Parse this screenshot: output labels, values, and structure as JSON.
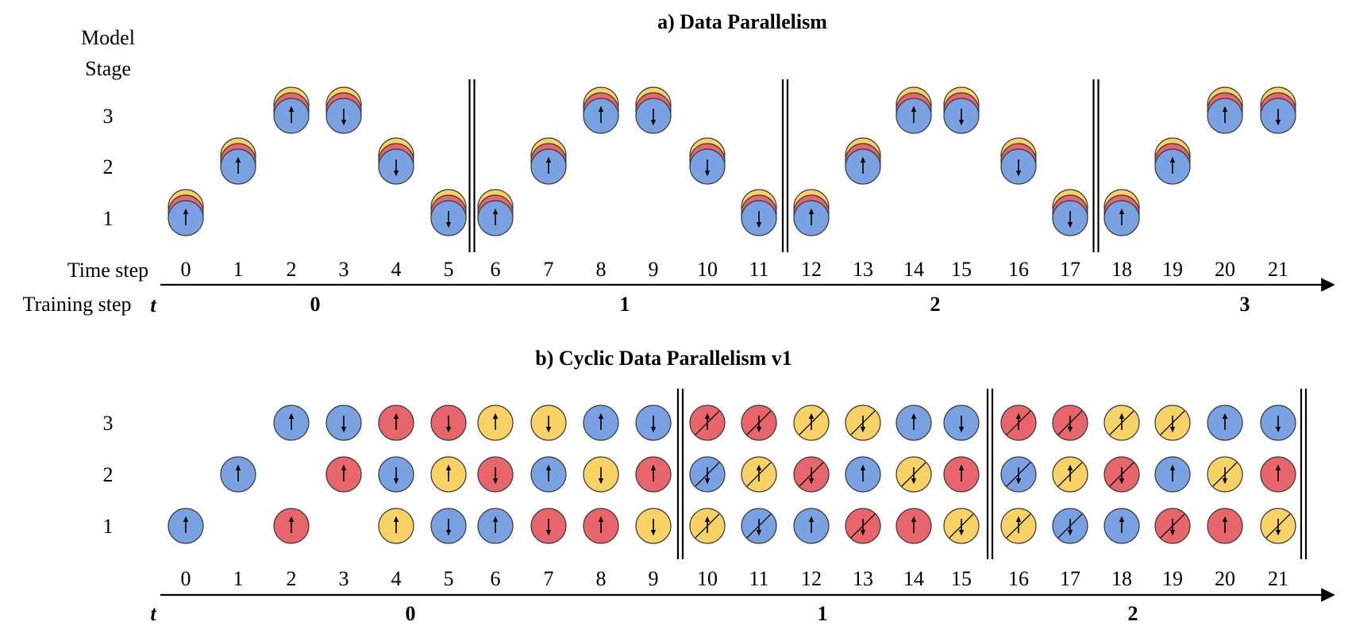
{
  "colors": {
    "blue": "#7aa2e3",
    "red": "#e8666b",
    "yellow": "#f8d264",
    "stroke": "#3a3a3a",
    "axis": "#000000"
  },
  "panel_a": {
    "title": "a) Data Parallelism",
    "y_axis_label_line1": "Model",
    "y_axis_label_line2": "Stage",
    "stage_labels": [
      "1",
      "2",
      "3"
    ],
    "time_axis_label": "Time step",
    "training_axis_label": "Training step",
    "training_axis_symbol": "t",
    "time_ticks": [
      "0",
      "1",
      "2",
      "3",
      "4",
      "5",
      "6",
      "7",
      "8",
      "9",
      "10",
      "11",
      "12",
      "13",
      "14",
      "15",
      "16",
      "17",
      "18",
      "19",
      "20",
      "21"
    ],
    "training_ticks": [
      "0",
      "1",
      "2",
      "3"
    ],
    "stacks": [
      {
        "time": 0,
        "stage": 1,
        "dir": "up"
      },
      {
        "time": 1,
        "stage": 2,
        "dir": "up"
      },
      {
        "time": 2,
        "stage": 3,
        "dir": "up"
      },
      {
        "time": 3,
        "stage": 3,
        "dir": "down"
      },
      {
        "time": 4,
        "stage": 2,
        "dir": "down"
      },
      {
        "time": 5,
        "stage": 1,
        "dir": "down"
      },
      {
        "time": 6,
        "stage": 1,
        "dir": "up"
      },
      {
        "time": 7,
        "stage": 2,
        "dir": "up"
      },
      {
        "time": 8,
        "stage": 3,
        "dir": "up"
      },
      {
        "time": 9,
        "stage": 3,
        "dir": "down"
      },
      {
        "time": 10,
        "stage": 2,
        "dir": "down"
      },
      {
        "time": 11,
        "stage": 1,
        "dir": "down"
      },
      {
        "time": 12,
        "stage": 1,
        "dir": "up"
      },
      {
        "time": 13,
        "stage": 2,
        "dir": "up"
      },
      {
        "time": 14,
        "stage": 3,
        "dir": "up"
      },
      {
        "time": 15,
        "stage": 3,
        "dir": "down"
      },
      {
        "time": 16,
        "stage": 2,
        "dir": "down"
      },
      {
        "time": 17,
        "stage": 1,
        "dir": "down"
      },
      {
        "time": 18,
        "stage": 1,
        "dir": "up"
      },
      {
        "time": 19,
        "stage": 2,
        "dir": "up"
      },
      {
        "time": 20,
        "stage": 3,
        "dir": "up"
      },
      {
        "time": 21,
        "stage": 3,
        "dir": "down"
      }
    ],
    "separators_after_time": [
      5,
      11,
      17
    ]
  },
  "panel_b": {
    "title": "b) Cyclic Data Parallelism v1",
    "stage_labels": [
      "1",
      "2",
      "3"
    ],
    "time_ticks": [
      "0",
      "1",
      "2",
      "3",
      "4",
      "5",
      "6",
      "7",
      "8",
      "9",
      "10",
      "11",
      "12",
      "13",
      "14",
      "15",
      "16",
      "17",
      "18",
      "19",
      "20",
      "21"
    ],
    "training_axis_symbol": "t",
    "training_ticks": [
      "0",
      "1",
      "2"
    ],
    "separators_after_time": [
      9,
      15,
      21
    ],
    "rows": {
      "3": [
        "",
        "",
        "B^",
        "Bv",
        "R^",
        "Rv",
        "Y^",
        "Yv",
        "B^",
        "Bv",
        "R^/",
        "Rv/",
        "Y^/",
        "Yv/",
        "B^",
        "Bv",
        "R^/",
        "Rv/",
        "Y^/",
        "Yv/",
        "B^",
        "Bv"
      ],
      "2": [
        "",
        "B^",
        "",
        "R^",
        "Bv",
        "Y^",
        "Rv",
        "B^",
        "Yv",
        "R^",
        "Bv/",
        "Y^/",
        "Rv/",
        "B^",
        "Yv/",
        "R^",
        "Bv/",
        "Y^/",
        "Rv/",
        "B^",
        "Yv/",
        "R^"
      ],
      "1": [
        "B^",
        "",
        "R^",
        "",
        "Y^",
        "Bv",
        "B^",
        "Rv",
        "R^",
        "Yv",
        "Y^/",
        "Bv/",
        "B^",
        "Rv/",
        "R^",
        "Yv/",
        "Y^/",
        "Bv/",
        "B^",
        "Rv/",
        "R^",
        "Yv/"
      ]
    }
  }
}
